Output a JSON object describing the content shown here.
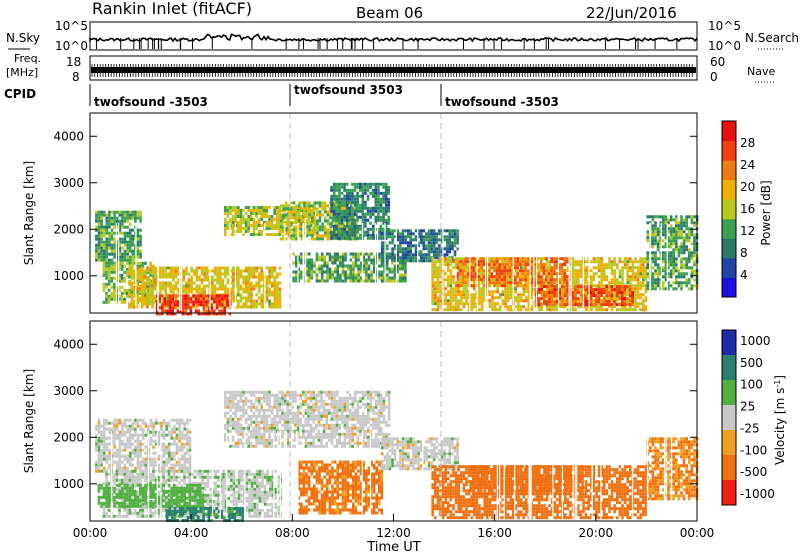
{
  "header": {
    "station": "Rankin Inlet (fitACF)",
    "beam": "Beam 06",
    "date": "22/Jun/2016"
  },
  "noise_panel": {
    "left_label": "N.Sky",
    "right_label": "N.Search",
    "left_ticks": [
      "10^5",
      "10^0"
    ],
    "right_ticks": [
      "10^5",
      "10^0"
    ]
  },
  "freq_panel": {
    "left_label": "Freq.",
    "left_unit": "[MHz]",
    "right_label": "Nave",
    "left_ticks": [
      "18",
      "8"
    ],
    "right_ticks": [
      "60",
      "0"
    ]
  },
  "cpid": {
    "label": "CPID",
    "segments": [
      {
        "label": "twofsound -3503",
        "start": 0
      },
      {
        "label": "twofsound 3503",
        "start": 8
      },
      {
        "label": "twofsound -3503",
        "start": 14
      }
    ]
  },
  "colors": {
    "power_scale": [
      "#1a10e0",
      "#2046a8",
      "#2a7a68",
      "#3aa050",
      "#b8c820",
      "#f0b000",
      "#f07a10",
      "#f04010",
      "#e81010"
    ],
    "velocity_scale": [
      "#1c2ca8",
      "#2a8070",
      "#50b040",
      "#c8c8c8",
      "#f0a020",
      "#f07010",
      "#f02010"
    ],
    "dash_line": "#b8b8b8"
  },
  "chart_data": [
    {
      "type": "heatmap",
      "name_panel": "power",
      "ylabel": "Slant Range [km]",
      "yticks": [
        "1000",
        "2000",
        "3000",
        "4000"
      ],
      "ylim": [
        200,
        4500
      ],
      "xlim": [
        0,
        24
      ],
      "colorbar": {
        "label": "Power [dB]",
        "ticks": [
          "4",
          "8",
          "12",
          "16",
          "20",
          "24",
          "28"
        ],
        "range": [
          0,
          32
        ]
      },
      "regions": [
        {
          "t0": 0.2,
          "t1": 2.0,
          "r0": 1300,
          "r1": 2400,
          "v": 12
        },
        {
          "t0": 0.5,
          "t1": 2.5,
          "r0": 400,
          "r1": 1300,
          "v": 14
        },
        {
          "t0": 1.5,
          "t1": 7.5,
          "r0": 300,
          "r1": 1200,
          "v": 18
        },
        {
          "t0": 2.6,
          "t1": 5.5,
          "r0": 200,
          "r1": 600,
          "v": 28
        },
        {
          "t0": 5.3,
          "t1": 8.8,
          "r0": 1900,
          "r1": 2500,
          "v": 16
        },
        {
          "t0": 7.5,
          "t1": 10.5,
          "r0": 1800,
          "r1": 2600,
          "v": 16
        },
        {
          "t0": 9.5,
          "t1": 11.8,
          "r0": 1800,
          "r1": 3000,
          "v": 10
        },
        {
          "t0": 8.0,
          "t1": 12.5,
          "r0": 900,
          "r1": 1500,
          "v": 12
        },
        {
          "t0": 11.5,
          "t1": 14.5,
          "r0": 1300,
          "r1": 2000,
          "v": 9
        },
        {
          "t0": 13.5,
          "t1": 22.0,
          "r0": 300,
          "r1": 1400,
          "v": 18
        },
        {
          "t0": 14.5,
          "t1": 19.0,
          "r0": 800,
          "r1": 1400,
          "v": 24
        },
        {
          "t0": 17.5,
          "t1": 21.5,
          "r0": 400,
          "r1": 800,
          "v": 26
        },
        {
          "t0": 22.0,
          "t1": 24.0,
          "r0": 700,
          "r1": 2300,
          "v": 12
        }
      ]
    },
    {
      "type": "heatmap",
      "name_panel": "velocity",
      "ylabel": "Slant Range [km]",
      "yticks": [
        "1000",
        "2000",
        "3000",
        "4000"
      ],
      "ylim": [
        200,
        4500
      ],
      "xlim": [
        0,
        24
      ],
      "xticks": [
        "00:00",
        "04:00",
        "08:00",
        "12:00",
        "16:00",
        "20:00",
        "00:00"
      ],
      "xlabel": "Time UT",
      "colorbar": {
        "label": "Velocity [m s^-1]",
        "ticks": [
          "1000",
          "500",
          "100",
          "25",
          "-25",
          "-100",
          "-500",
          "-1000"
        ]
      },
      "regions": [
        {
          "t0": 0.2,
          "t1": 4.0,
          "r0": 1300,
          "r1": 2400,
          "v": 0
        },
        {
          "t0": 0.5,
          "t1": 7.5,
          "r0": 300,
          "r1": 1300,
          "v": 10
        },
        {
          "t0": 0.3,
          "t1": 4.5,
          "r0": 500,
          "r1": 1000,
          "v": 60
        },
        {
          "t0": 3.0,
          "t1": 6.0,
          "r0": 200,
          "r1": 500,
          "v": 120
        },
        {
          "t0": 5.3,
          "t1": 11.8,
          "r0": 1800,
          "r1": 3000,
          "v": 0
        },
        {
          "t0": 8.2,
          "t1": 11.5,
          "r0": 400,
          "r1": 1500,
          "v": -120
        },
        {
          "t0": 11.5,
          "t1": 14.5,
          "r0": 1300,
          "r1": 2000,
          "v": 0
        },
        {
          "t0": 13.5,
          "t1": 22.0,
          "r0": 300,
          "r1": 1400,
          "v": -200
        },
        {
          "t0": 15.0,
          "t1": 19.5,
          "r0": 800,
          "r1": 1400,
          "v": -300
        },
        {
          "t0": 22.0,
          "t1": 24.0,
          "r0": 700,
          "r1": 2000,
          "v": -100
        }
      ]
    }
  ]
}
